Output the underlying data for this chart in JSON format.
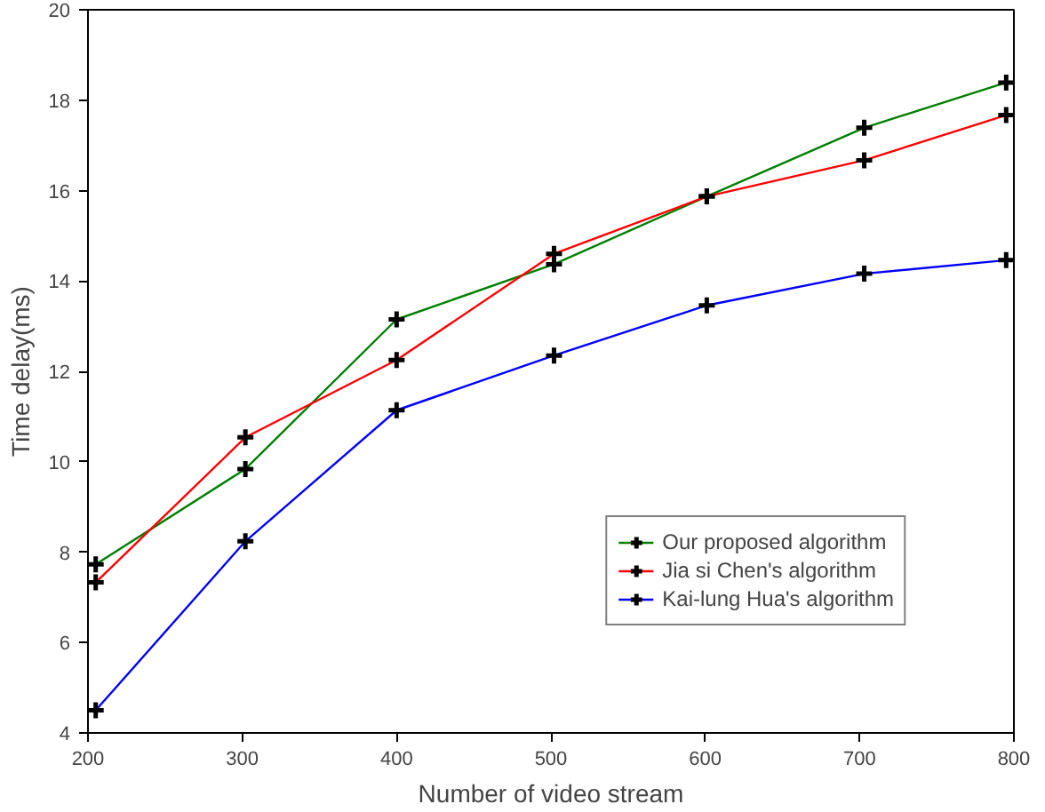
{
  "chart_data": {
    "type": "line",
    "xlabel": "Number of video stream",
    "ylabel": "Time delay(ms)",
    "x": [
      205,
      302,
      400,
      502,
      601,
      703,
      795
    ],
    "series": [
      {
        "name": "Our proposed algorithm",
        "color": "#008000",
        "values": [
          7.73,
          9.84,
          13.15,
          14.37,
          15.87,
          17.39,
          18.39
        ]
      },
      {
        "name": "Jia si Chen's algorithm",
        "color": "#ff0000",
        "values": [
          7.33,
          10.54,
          12.25,
          14.6,
          15.87,
          16.67,
          17.67
        ]
      },
      {
        "name": "Kai-lung Hua's algorithm",
        "color": "#0000ff",
        "values": [
          4.5,
          8.24,
          11.14,
          12.35,
          13.46,
          14.16,
          14.46
        ]
      }
    ],
    "xlim": [
      200,
      800
    ],
    "xticks": [
      200,
      300,
      400,
      500,
      600,
      700,
      800
    ],
    "ylim": [
      4,
      20
    ],
    "yticks": [
      4,
      6,
      8,
      10,
      12,
      14,
      16,
      18,
      20
    ],
    "grid": false,
    "legend": "bottom right",
    "marker": "cross",
    "line_style": "solid"
  }
}
